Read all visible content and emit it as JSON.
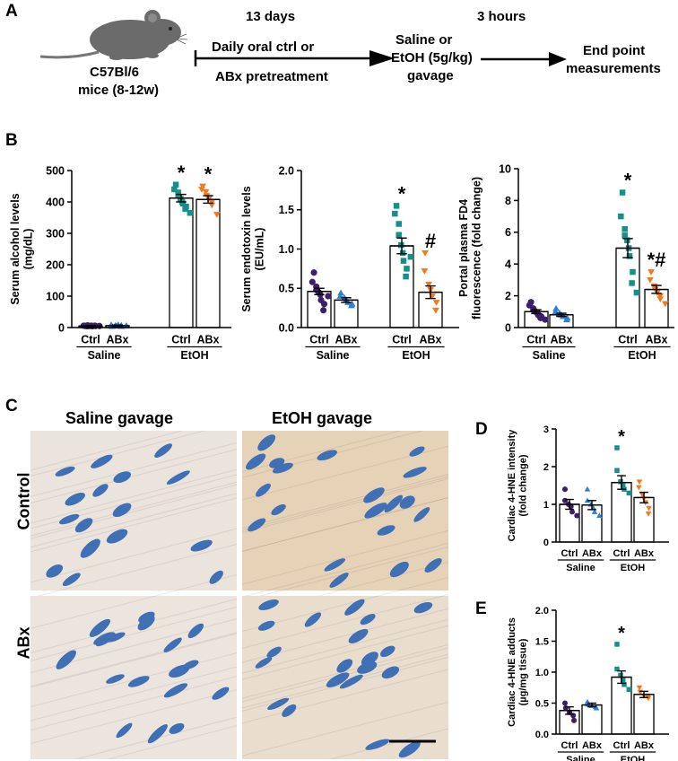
{
  "panels": {
    "A": {
      "letter": "A",
      "mouse_label_1": "C57Bl/6",
      "mouse_label_2": "mice (8-12w)",
      "step1_time": "13 days",
      "step1_text_1": "Daily oral ctrl or",
      "step1_text_2": "ABx pretreatment",
      "step2_text_1": "Saline or",
      "step2_text_2": "EtOH (5g/kg)",
      "step2_text_3": "gavage",
      "step2_time": "3 hours",
      "step3_text_1": "End point",
      "step3_text_2": "measurements"
    },
    "B": {
      "letter": "B"
    },
    "C": {
      "letter": "C",
      "col_saline": "Saline gavage",
      "col_etoh": "EtOH gavage",
      "row_control": "Control",
      "row_abx": "ABx"
    },
    "D": {
      "letter": "D"
    },
    "E": {
      "letter": "E"
    }
  },
  "colors": {
    "ctrl_saline": "#3b1f6b",
    "abx_saline": "#2f7fd6",
    "ctrl_etoh": "#14908a",
    "abx_etoh": "#f07a1e"
  },
  "chart_data": [
    {
      "id": "alcohol",
      "type": "bar",
      "ylabel": [
        "Serum alcohol levels",
        "(mg/dL)"
      ],
      "ylim": [
        0,
        500
      ],
      "yticks": [
        0,
        100,
        200,
        300,
        400,
        500
      ],
      "ytick_labels": [
        "0",
        "100",
        "200",
        "300",
        "400",
        "500"
      ],
      "categories": [
        "Ctrl",
        "ABx",
        "Ctrl",
        "ABx"
      ],
      "groups": [
        "Saline",
        "EtOH"
      ],
      "values": [
        5,
        6,
        412,
        408
      ],
      "errors": [
        1.5,
        2,
        12,
        12
      ],
      "annotations": [
        "",
        "",
        "*",
        "*"
      ],
      "points": [
        [
          5,
          6,
          4,
          7,
          5,
          6,
          4,
          5,
          6,
          5
        ],
        [
          4,
          8,
          6,
          5,
          9,
          4,
          7,
          6
        ],
        [
          455,
          440,
          430,
          420,
          410,
          400,
          395,
          385,
          378,
          365
        ],
        [
          450,
          440,
          432,
          420,
          410,
          400,
          390,
          360
        ]
      ]
    },
    {
      "id": "endotoxin",
      "type": "bar",
      "ylabel": [
        "Serum endotoxin levels",
        "(EU/mL)"
      ],
      "ylim": [
        0,
        2.0
      ],
      "yticks": [
        0,
        0.5,
        1.0,
        1.5,
        2.0
      ],
      "ytick_labels": [
        "0.0",
        "0.5",
        "1.0",
        "1.5",
        "2.0"
      ],
      "categories": [
        "Ctrl",
        "ABx",
        "Ctrl",
        "ABx"
      ],
      "groups": [
        "Saline",
        "EtOH"
      ],
      "values": [
        0.46,
        0.35,
        1.04,
        0.45
      ],
      "errors": [
        0.04,
        0.03,
        0.1,
        0.08
      ],
      "annotations": [
        "",
        "",
        "*",
        "#"
      ],
      "points": [
        [
          0.7,
          0.58,
          0.52,
          0.48,
          0.45,
          0.42,
          0.35,
          0.3,
          0.22,
          0.4
        ],
        [
          0.44,
          0.4,
          0.38,
          0.35,
          0.32,
          0.3,
          0.28
        ],
        [
          1.55,
          1.45,
          1.32,
          1.18,
          1.05,
          0.95,
          0.85,
          0.75,
          0.65,
          0.9
        ],
        [
          0.95,
          0.72,
          0.55,
          0.48,
          0.4,
          0.32,
          0.22
        ]
      ]
    },
    {
      "id": "fd4",
      "type": "bar",
      "ylabel": [
        "Portal plasma FD4",
        "fluorescence (fold change)"
      ],
      "ylim": [
        0,
        10
      ],
      "yticks": [
        0,
        2,
        4,
        6,
        8,
        10
      ],
      "ytick_labels": [
        "0",
        "2",
        "4",
        "6",
        "8",
        "10"
      ],
      "categories": [
        "Ctrl",
        "ABx",
        "Ctrl",
        "ABx"
      ],
      "groups": [
        "Saline",
        "EtOH"
      ],
      "values": [
        1.0,
        0.8,
        5.0,
        2.4
      ],
      "errors": [
        0.12,
        0.1,
        0.6,
        0.25
      ],
      "annotations": [
        "",
        "",
        "*",
        "*#"
      ],
      "points": [
        [
          1.6,
          1.4,
          1.2,
          1.1,
          1.0,
          0.95,
          0.8,
          0.7,
          0.6,
          0.5
        ],
        [
          1.2,
          1.0,
          0.9,
          0.8,
          0.7,
          0.6,
          0.5
        ],
        [
          8.5,
          7.0,
          6.2,
          5.8,
          5.5,
          5.0,
          4.5,
          3.5,
          2.8,
          2.2
        ],
        [
          3.5,
          3.0,
          2.6,
          2.4,
          2.2,
          2.0,
          1.8,
          1.5
        ]
      ]
    },
    {
      "id": "hne-intensity",
      "type": "bar",
      "ylabel": [
        "Cardiac 4-HNE intensity",
        "(fold change)"
      ],
      "ylim": [
        0,
        3
      ],
      "yticks": [
        0,
        1,
        2,
        3
      ],
      "ytick_labels": [
        "0",
        "1",
        "2",
        "3"
      ],
      "categories": [
        "Ctrl",
        "ABx",
        "Ctrl",
        "ABx"
      ],
      "groups": [
        "Saline",
        "EtOH"
      ],
      "values": [
        1.0,
        0.98,
        1.58,
        1.18
      ],
      "errors": [
        0.13,
        0.12,
        0.18,
        0.14
      ],
      "annotations": [
        "",
        "",
        "*",
        ""
      ],
      "points": [
        [
          1.4,
          1.1,
          1.0,
          0.95,
          0.8,
          0.7
        ],
        [
          1.4,
          1.1,
          1.0,
          0.9,
          0.8,
          0.7
        ],
        [
          2.5,
          1.9,
          1.6,
          1.5,
          1.4,
          1.3
        ],
        [
          1.6,
          1.45,
          1.25,
          1.15,
          1.05,
          0.9,
          0.75
        ]
      ]
    },
    {
      "id": "hne-adducts",
      "type": "bar",
      "ylabel": [
        "Cardiac 4-HNE adducts",
        "(µg/mg tissue)"
      ],
      "ylim": [
        0,
        2.0
      ],
      "yticks": [
        0,
        0.5,
        1.0,
        1.5,
        2.0
      ],
      "ytick_labels": [
        "0.0",
        "0.5",
        "1.0",
        "1.5",
        "2.0"
      ],
      "categories": [
        "Ctrl",
        "ABx",
        "Ctrl",
        "ABx"
      ],
      "groups": [
        "Saline",
        "EtOH"
      ],
      "values": [
        0.38,
        0.47,
        0.92,
        0.64
      ],
      "errors": [
        0.06,
        0.03,
        0.1,
        0.05
      ],
      "annotations": [
        "",
        "",
        "*",
        ""
      ],
      "points": [
        [
          0.5,
          0.42,
          0.35,
          0.3,
          0.22
        ],
        [
          0.52,
          0.48,
          0.46,
          0.44,
          0.42
        ],
        [
          1.45,
          1.05,
          0.95,
          0.88,
          0.8,
          0.72
        ],
        [
          0.75,
          0.68,
          0.62,
          0.6,
          0.58
        ]
      ]
    }
  ]
}
